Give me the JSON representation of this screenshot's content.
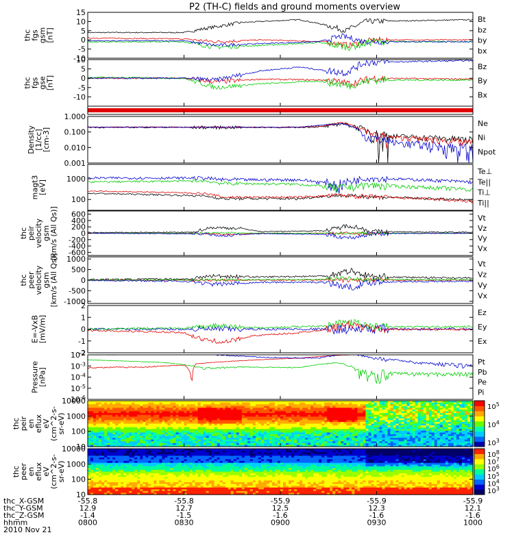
{
  "title": "P2 (TH-C) fields and ground moments overview",
  "colors": {
    "black": "#000000",
    "red": "#e00000",
    "green": "#00cc00",
    "blue": "#0000cc"
  },
  "panels": [
    {
      "ylabel": [
        "thc",
        "fgs",
        "gsm",
        "[nT]"
      ],
      "yticks": [
        "15",
        "10",
        "5",
        "0",
        "-5",
        "-10"
      ],
      "ylim": [
        -10,
        15
      ],
      "legend": [
        {
          "t": "Bt",
          "c": "black"
        },
        {
          "t": "bz",
          "c": "red"
        },
        {
          "t": "by",
          "c": "green"
        },
        {
          "t": "bx",
          "c": "blue"
        }
      ]
    },
    {
      "ylabel": [
        "thc",
        "fgs",
        "gse",
        "[nT]"
      ],
      "yticks": [
        "10",
        "5",
        "0",
        "-5",
        "-10"
      ],
      "ylim": [
        -15,
        10
      ],
      "legend": [
        {
          "t": "Bz",
          "c": "red"
        },
        {
          "t": "By",
          "c": "green"
        },
        {
          "t": "Bx",
          "c": "blue"
        }
      ]
    },
    {
      "ylabel": [],
      "yticks": [],
      "ylim": [
        0,
        1
      ],
      "legend": []
    },
    {
      "ylabel": [
        "Density",
        "[1/cc]",
        "[cm-3]"
      ],
      "yticks": [
        "1.000",
        "0.100",
        "0.010",
        "0.001"
      ],
      "ylim": [
        0.001,
        1
      ],
      "log": true,
      "legend": [
        {
          "t": "Ne",
          "c": "red"
        },
        {
          "t": "Ni",
          "c": "black"
        },
        {
          "t": "Npot",
          "c": "blue"
        }
      ]
    },
    {
      "ylabel": [
        "magt3",
        "[eV]"
      ],
      "yticks": [
        "1000",
        "100"
      ],
      "ylim": [
        30,
        5000
      ],
      "log": true,
      "legend": [
        {
          "t": "Te⊥",
          "c": "red"
        },
        {
          "t": "Te||",
          "c": "black"
        },
        {
          "t": "Ti⊥",
          "c": "black"
        },
        {
          "t": "Ti||",
          "c": "green"
        }
      ]
    },
    {
      "ylabel": [
        "thc",
        "peir",
        "velocity",
        "gsm",
        "[km/s (All Qs)]"
      ],
      "yticks": [
        "600",
        "400",
        "200",
        "0",
        "-200",
        "-400",
        "-600"
      ],
      "ylim": [
        -700,
        700
      ],
      "legend": [
        {
          "t": "Vt",
          "c": "black"
        },
        {
          "t": "Vz",
          "c": "red"
        },
        {
          "t": "Vy",
          "c": "green"
        },
        {
          "t": "Vx",
          "c": "blue"
        }
      ]
    },
    {
      "ylabel": [
        "thc",
        "peer",
        "velocity",
        "gsm",
        "[km/s (All Qs)]"
      ],
      "yticks": [
        "1000",
        "500",
        "0",
        "-500",
        "-1000"
      ],
      "ylim": [
        -1100,
        1100
      ],
      "legend": [
        {
          "t": "Vt",
          "c": "black"
        },
        {
          "t": "Vz",
          "c": "red"
        },
        {
          "t": "Vy",
          "c": "green"
        },
        {
          "t": "Vx",
          "c": "blue"
        }
      ]
    },
    {
      "ylabel": [
        "E=-VxB",
        "[mV/m]"
      ],
      "yticks": [
        "2",
        "1",
        "0",
        "-1",
        "-2"
      ],
      "ylim": [
        -2,
        2
      ],
      "legend": [
        {
          "t": "Ez",
          "c": "red"
        },
        {
          "t": "Ey",
          "c": "green"
        },
        {
          "t": "Ex",
          "c": "blue"
        }
      ]
    },
    {
      "ylabel": [
        "Pressure",
        "[nPa]"
      ],
      "yticks": [
        "10-2",
        "10-3",
        "10-4",
        "10-5",
        "10-6"
      ],
      "ylim": [
        1e-06,
        0.01
      ],
      "log": true,
      "legend": [
        {
          "t": "Pt",
          "c": "black"
        },
        {
          "t": "Pb",
          "c": "red"
        },
        {
          "t": "Pe",
          "c": "green"
        },
        {
          "t": "Pi",
          "c": "blue"
        }
      ]
    },
    {
      "ylabel": [
        "thc",
        "peir",
        "en",
        "eflux",
        "eV",
        "(cm^2-s-",
        "sr-eV)"
      ],
      "yticks": [
        "10000",
        "1000",
        "100",
        "10"
      ],
      "ylim": [
        10,
        10000
      ],
      "log": true,
      "colorbar": [
        "10^5",
        "10^4",
        "10^3"
      ]
    },
    {
      "ylabel": [
        "thc",
        "peer",
        "en",
        "eflux",
        "eV",
        "(cm^2-s-",
        "sr-eV)"
      ],
      "yticks": [
        "10000",
        "1000",
        "100",
        "10"
      ],
      "ylim": [
        10,
        10000
      ],
      "log": true,
      "colorbar": [
        "10^8",
        "10^7",
        "10^6",
        "10^5",
        "10^4",
        "10^3"
      ]
    }
  ],
  "xaxis": {
    "row_labels": [
      "thc_X-GSM",
      "thc_Y-GSM",
      "thc_Z-GSM",
      "hhmm",
      "2010 Nov 21"
    ],
    "ticks": [
      {
        "x": "-55.8",
        "y": "12.9",
        "z": "-1.4",
        "t": "0800"
      },
      {
        "x": "-55.8",
        "y": "12.7",
        "z": "-1.5",
        "t": "0830"
      },
      {
        "x": "-55.9",
        "y": "12.5",
        "z": "-1.6",
        "t": "0900"
      },
      {
        "x": "-55.9",
        "y": "12.3",
        "z": "-1.6",
        "t": "0930"
      },
      {
        "x": "-55.9",
        "y": "12.1",
        "z": "-1.6",
        "t": "1000"
      }
    ]
  },
  "chart_data": {
    "type": "line",
    "title": "P2 (TH-C) fields and ground moments overview",
    "time_range": [
      "0800",
      "1000"
    ],
    "date": "2010 Nov 21",
    "panels": [
      {
        "name": "fgs gsm",
        "series": [
          {
            "name": "Bt",
            "x": [
              "0800",
              "0830",
              "0845",
              "0900",
              "0915",
              "0925",
              "0930",
              "1000"
            ],
            "values": [
              4,
              4,
              9,
              10,
              11,
              6,
              10,
              11
            ]
          },
          {
            "name": "bz",
            "x": [
              "0800",
              "0830",
              "0845",
              "0900",
              "0915",
              "0925",
              "0930",
              "1000"
            ],
            "values": [
              1,
              0,
              -1,
              0,
              -1,
              -2,
              0,
              0
            ]
          },
          {
            "name": "by",
            "x": [
              "0800",
              "0830",
              "0845",
              "0900",
              "0915",
              "0925",
              "0930",
              "1000"
            ],
            "values": [
              -1,
              -1,
              -4,
              -2,
              -1,
              -3,
              -1,
              -1
            ]
          },
          {
            "name": "bx",
            "x": [
              "0800",
              "0830",
              "0845",
              "0900",
              "0915",
              "0925",
              "0930",
              "1000"
            ],
            "values": [
              -1,
              -1,
              -3,
              -2,
              -1,
              1,
              0,
              -1
            ]
          }
        ]
      },
      {
        "name": "fgs gse",
        "series": [
          {
            "name": "Bz",
            "x": [
              "0800",
              "0830",
              "0845",
              "0900",
              "0915",
              "0925",
              "0930",
              "1000"
            ],
            "values": [
              0,
              0,
              -2,
              0,
              -1,
              -2,
              0,
              0
            ]
          },
          {
            "name": "By",
            "x": [
              "0800",
              "0830",
              "0845",
              "0900",
              "0915",
              "0925",
              "0930",
              "1000"
            ],
            "values": [
              0,
              -1,
              -5,
              -3,
              -1,
              -3,
              -1,
              -1
            ]
          },
          {
            "name": "Bx",
            "x": [
              "0800",
              "0830",
              "0845",
              "0900",
              "0915",
              "0925",
              "0930",
              "1000"
            ],
            "values": [
              0,
              0,
              1,
              5,
              7,
              5,
              9,
              10
            ]
          }
        ]
      },
      {
        "name": "Density",
        "series": [
          {
            "name": "Ne",
            "x": [
              "0800",
              "0830",
              "0900",
              "0915",
              "0925",
              "0935",
              "1000"
            ],
            "values": [
              0.2,
              0.2,
              0.2,
              0.25,
              0.35,
              0.1,
              0.03
            ]
          },
          {
            "name": "Ni",
            "x": [
              "0800",
              "0830",
              "0900",
              "0915",
              "0925",
              "0935",
              "1000"
            ],
            "values": [
              0.2,
              0.2,
              0.2,
              0.2,
              0.3,
              0.08,
              0.03
            ]
          },
          {
            "name": "Npot",
            "x": [
              "0800",
              "0830",
              "0900",
              "0915",
              "0925",
              "0935",
              "1000"
            ],
            "values": [
              0.2,
              0.2,
              0.2,
              0.2,
              0.3,
              0.05,
              0.008
            ]
          }
        ]
      },
      {
        "name": "magt3",
        "series": [
          {
            "name": "Te⊥",
            "x": [
              "0800",
              "0830",
              "0900",
              "0925",
              "0935",
              "1000"
            ],
            "values": [
              200,
              150,
              130,
              150,
              150,
              70
            ]
          },
          {
            "name": "Ti⊥",
            "x": [
              "0800",
              "0830",
              "0900",
              "0925",
              "0935",
              "1000"
            ],
            "values": [
              1000,
              1000,
              800,
              500,
              1000,
              700
            ]
          },
          {
            "name": "Ti||",
            "x": [
              "0800",
              "0830",
              "0900",
              "0925",
              "0935",
              "1000"
            ],
            "values": [
              700,
              800,
              600,
              400,
              500,
              300
            ]
          }
        ]
      },
      {
        "name": "peir velocity",
        "series": [
          {
            "name": "Vt",
            "x": [
              "0800",
              "0830",
              "0845",
              "0900",
              "0925",
              "0930",
              "1000"
            ],
            "values": [
              20,
              40,
              180,
              60,
              300,
              40,
              30
            ]
          },
          {
            "name": "Vx",
            "x": [
              "0800",
              "0830",
              "0845",
              "0900",
              "0925",
              "0930",
              "1000"
            ],
            "values": [
              0,
              -20,
              -80,
              0,
              -200,
              0,
              0
            ]
          }
        ]
      },
      {
        "name": "peer velocity",
        "series": [
          {
            "name": "Vt",
            "x": [
              "0800",
              "0830",
              "0845",
              "0900",
              "0925",
              "0930",
              "1000"
            ],
            "values": [
              30,
              60,
              250,
              150,
              500,
              150,
              100
            ]
          },
          {
            "name": "Vx",
            "x": [
              "0800",
              "0830",
              "0845",
              "0900",
              "0925",
              "0930",
              "1000"
            ],
            "values": [
              0,
              -80,
              -250,
              -100,
              -400,
              -100,
              -50
            ]
          }
        ]
      },
      {
        "name": "E=-VxB",
        "series": [
          {
            "name": "Ez",
            "x": [
              "0800",
              "0830",
              "0840",
              "0900",
              "0925",
              "0930",
              "1000"
            ],
            "values": [
              -0.1,
              -0.3,
              -1,
              -0.5,
              0.5,
              0,
              0
            ]
          },
          {
            "name": "Ey",
            "x": [
              "0800",
              "0830",
              "0840",
              "0900",
              "0925",
              "0930",
              "1000"
            ],
            "values": [
              0,
              0.2,
              0.3,
              0.1,
              0.6,
              0.1,
              0.2
            ]
          },
          {
            "name": "Ex",
            "x": [
              "0800",
              "0830",
              "0840",
              "0900",
              "0925",
              "0930",
              "1000"
            ],
            "values": [
              0,
              0,
              0.1,
              0,
              0.2,
              0,
              0
            ]
          }
        ]
      },
      {
        "name": "Pressure",
        "series": [
          {
            "name": "Pt",
            "x": [
              "0800",
              "0830",
              "0900",
              "0925",
              "0930",
              "1000"
            ],
            "values": [
              0.015,
              0.015,
              0.01,
              0.012,
              0.015,
              0.015
            ]
          },
          {
            "name": "Pb",
            "x": [
              "0800",
              "0830",
              "0900",
              "0925",
              "0930",
              "1000"
            ],
            "values": [
              0.001,
              0.002,
              0.005,
              0.008,
              0.01,
              0.015
            ]
          },
          {
            "name": "Pe",
            "x": [
              "0800",
              "0830",
              "0900",
              "0925",
              "0930",
              "1000"
            ],
            "values": [
              0.003,
              0.0008,
              0.0005,
              0.001,
              0.00015,
              0.0002
            ]
          },
          {
            "name": "Pi",
            "x": [
              "0800",
              "0830",
              "0900",
              "0925",
              "0930",
              "1000"
            ],
            "values": [
              0.01,
              0.01,
              0.005,
              0.01,
              0.003,
              0.001
            ]
          }
        ]
      }
    ]
  }
}
